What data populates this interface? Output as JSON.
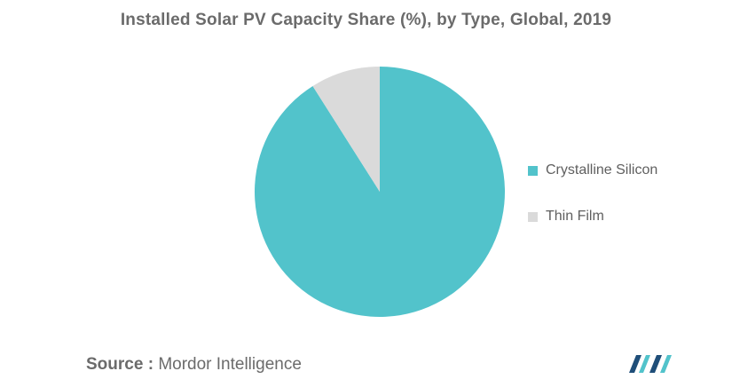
{
  "chart_data": {
    "type": "pie",
    "title": "Installed Solar PV Capacity Share (%), by Type, Global, 2019",
    "categories": [
      "Crystalline Silicon",
      "Thin Film"
    ],
    "values": [
      91,
      9
    ],
    "colors": [
      "#52C3CB",
      "#DADADA"
    ],
    "legend_position": "right"
  },
  "source": {
    "label": "Source :",
    "text": "Mordor Intelligence"
  },
  "logo": {
    "icon": "mordor-intelligence-logo-icon",
    "colors": [
      "#1f4e79",
      "#52C3CB"
    ]
  }
}
